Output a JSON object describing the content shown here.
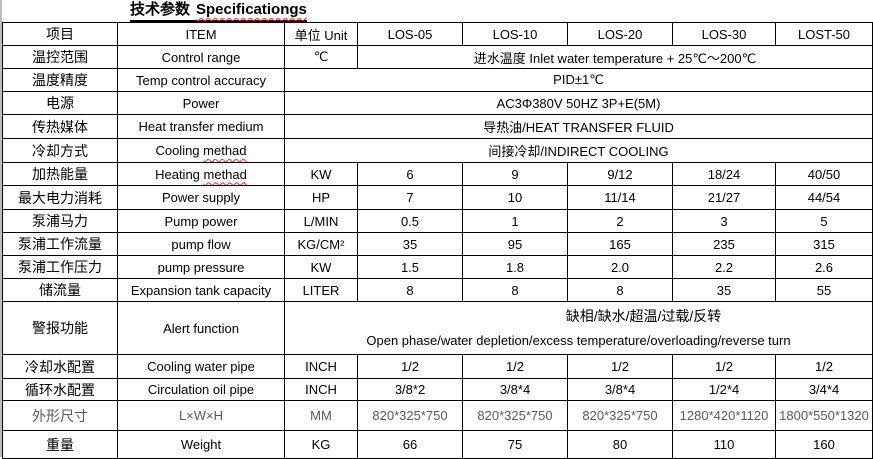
{
  "title": {
    "zh": "技术参数",
    "en": "Specificationgs"
  },
  "columns": [
    "项目",
    "ITEM",
    "单位 Unit",
    "LOS-05",
    "LOS-10",
    "LOS-20",
    "LOS-30",
    "LOST-50"
  ],
  "rows": [
    {
      "zh": "温控范围",
      "en": "Control range",
      "unit": "℃",
      "span": "values",
      "value": "进水温度 Inlet water temperature + 25℃～200℃"
    },
    {
      "zh": "温度精度",
      "en": "Temp control accuracy",
      "span": "unit+values",
      "value": "PID±1℃"
    },
    {
      "zh": "电源",
      "en": "Power",
      "span": "unit+values",
      "value": "AC3Φ380V 50HZ 3P+E(5M)"
    },
    {
      "zh": "传热媒体",
      "en": "Heat transfer medium",
      "span": "unit+values",
      "value": "导热油/HEAT TRANSFER FLUID"
    },
    {
      "zh": "冷却方式",
      "en": "Cooling methad",
      "en_squiggle": "methad",
      "span": "unit+values",
      "value": "间接冷却/INDIRECT COOLING"
    },
    {
      "zh": "加热能量",
      "en": "Heating methad",
      "en_squiggle": "methad",
      "unit": "KW",
      "values": [
        "6",
        "9",
        "9/12",
        "18/24",
        "40/50"
      ]
    },
    {
      "zh": "最大电力消耗",
      "en": "Power supply",
      "unit": "HP",
      "values": [
        "7",
        "10",
        "11/14",
        "21/27",
        "44/54"
      ]
    },
    {
      "zh": "泵浦马力",
      "en": "Pump power",
      "unit": "L/MIN",
      "values": [
        "0.5",
        "1",
        "2",
        "3",
        "5"
      ]
    },
    {
      "zh": "泵浦工作流量",
      "en": "pump flow",
      "unit": "KG/CM²",
      "values": [
        "35",
        "95",
        "165",
        "235",
        "315"
      ]
    },
    {
      "zh": "泵浦工作压力",
      "en": "pump pressure",
      "unit": "KW",
      "values": [
        "1.5",
        "1.8",
        "2.0",
        "2.2",
        "2.6"
      ]
    },
    {
      "zh": "储流量",
      "en": "Expansion tank capacity",
      "unit": "LITER",
      "values": [
        "8",
        "8",
        "8",
        "35",
        "55"
      ]
    },
    {
      "zh": "警报功能",
      "en": "Alert function",
      "span": "unit+values",
      "value_lines": [
        "缺相/缺水/超温/过载/反转",
        "Open phase/water depletion/excess temperature/overloading/reverse turn"
      ]
    },
    {
      "zh": "冷却水配置",
      "en": "Cooling water pipe",
      "unit": "INCH",
      "values": [
        "1/2",
        "1/2",
        "1/2",
        "1/2",
        "1/2"
      ]
    },
    {
      "zh": "循环水配置",
      "en": "Circulation oil pipe",
      "unit": "INCH",
      "values": [
        "3/8*2",
        "3/8*4",
        "3/8*4",
        "1/2*4",
        "3/4*4"
      ]
    },
    {
      "zh": "外形尺寸",
      "en": "L×W×H",
      "unit": "MM",
      "muted": true,
      "values": [
        "820*325*750",
        "820*325*750",
        "820*325*750",
        "1280*420*1120",
        "1800*550*1320"
      ]
    },
    {
      "zh": "重量",
      "en": "Weight",
      "unit": "KG",
      "values": [
        "66",
        "75",
        "80",
        "110",
        "160"
      ]
    }
  ],
  "colors": {
    "text": "#000000",
    "muted_text": "#595959",
    "border": "#000000",
    "squiggle": "#ff2a2a"
  }
}
